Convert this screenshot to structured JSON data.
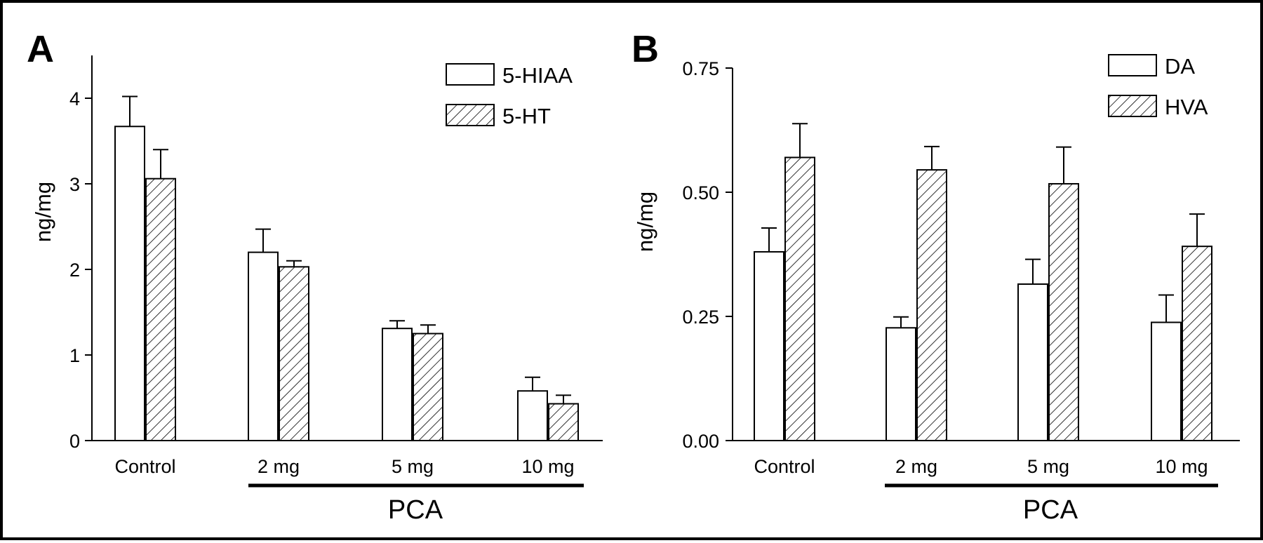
{
  "chart_data": [
    {
      "panel_label": "A",
      "type": "bar",
      "categories": [
        "Control",
        "2 mg",
        "5 mg",
        "10 mg"
      ],
      "group_label": "PCA",
      "ylabel": "ng/mg",
      "xlabel": "",
      "ylim": [
        0,
        4.5
      ],
      "yticks": [
        0,
        1,
        2,
        3,
        4
      ],
      "ytick_labels": [
        "0",
        "1",
        "2",
        "3",
        "4"
      ],
      "legend_position": "top-right",
      "series": [
        {
          "name": "5-HIAA",
          "fill": "open",
          "values": [
            3.67,
            2.2,
            1.31,
            0.58
          ],
          "errors": [
            0.35,
            0.27,
            0.09,
            0.16
          ]
        },
        {
          "name": "5-HT",
          "fill": "hatched",
          "values": [
            3.06,
            2.03,
            1.25,
            0.43
          ],
          "errors": [
            0.34,
            0.07,
            0.1,
            0.1
          ]
        }
      ]
    },
    {
      "panel_label": "B",
      "type": "bar",
      "categories": [
        "Control",
        "2 mg",
        "5 mg",
        "10 mg"
      ],
      "group_label": "PCA",
      "ylabel": "ng/mg",
      "xlabel": "",
      "ylim": [
        0,
        0.75
      ],
      "yticks": [
        0,
        0.25,
        0.5,
        0.75
      ],
      "ytick_labels": [
        "0.00",
        "0.25",
        "0.50",
        "0.75"
      ],
      "legend_position": "top-right",
      "series": [
        {
          "name": "DA",
          "fill": "open",
          "values": [
            0.38,
            0.227,
            0.315,
            0.238
          ],
          "errors": [
            0.048,
            0.022,
            0.05,
            0.055
          ]
        },
        {
          "name": "HVA",
          "fill": "hatched",
          "values": [
            0.57,
            0.545,
            0.517,
            0.391
          ],
          "errors": [
            0.068,
            0.047,
            0.074,
            0.065
          ]
        }
      ]
    }
  ],
  "colors": {
    "ink": "#000000",
    "background": "#ffffff"
  }
}
